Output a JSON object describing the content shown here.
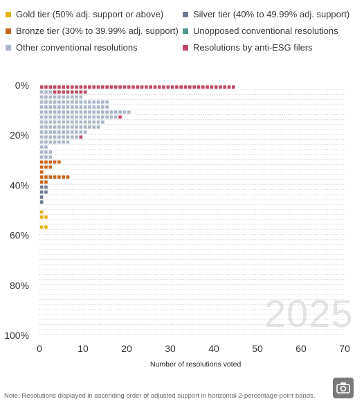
{
  "legend": [
    {
      "label": "Gold tier (50% adj. support or above)",
      "color": "#e8b215"
    },
    {
      "label": "Silver tier (40% to 49.99% adj. support)",
      "color": "#6e7a90"
    },
    {
      "label": "Bronze tier (30% to 39.99% adj. support)",
      "color": "#c8651f"
    },
    {
      "label": "Unopposed conventional resolutions",
      "color": "#4a9a8c"
    },
    {
      "label": "Other conventional resolutions",
      "color": "#aab6c8"
    },
    {
      "label": "Resolutions by anti-ESG filers",
      "color": "#c04a68"
    }
  ],
  "watermark": "2025",
  "note": "Note: Resolutions displayed in ascending order of adjusted support in horizontal 2-percentage-point bands.",
  "chart_data": {
    "type": "bar",
    "orientation": "horizontal",
    "xlabel": "Number of resolutions voted",
    "xlim": [
      0,
      70
    ],
    "x_ticks": [
      "0",
      "10",
      "20",
      "30",
      "40",
      "50",
      "60",
      "70"
    ],
    "ylim": [
      0,
      100
    ],
    "y_ticks": [
      "0%",
      "20%",
      "40%",
      "60%",
      "80%",
      "100%"
    ],
    "band_width_pct": 2,
    "bands": [
      {
        "band": "0-2%",
        "anti_esg": 45
      },
      {
        "band": "2-4%",
        "other": 3,
        "anti_esg": 8
      },
      {
        "band": "4-6%",
        "other": 10
      },
      {
        "band": "6-8%",
        "other": 16
      },
      {
        "band": "8-10%",
        "other": 16
      },
      {
        "band": "10-12%",
        "other": 21
      },
      {
        "band": "12-14%",
        "other": 18,
        "anti_esg": 1
      },
      {
        "band": "14-16%",
        "other": 15
      },
      {
        "band": "16-18%",
        "other": 14
      },
      {
        "band": "18-20%",
        "other": 11
      },
      {
        "band": "20-22%",
        "other": 9,
        "anti_esg": 1
      },
      {
        "band": "22-24%",
        "other": 7
      },
      {
        "band": "24-26%",
        "other": 2
      },
      {
        "band": "26-28%",
        "other": 3
      },
      {
        "band": "28-30%",
        "other": 3
      },
      {
        "band": "30-32%",
        "bronze": 5
      },
      {
        "band": "32-34%",
        "bronze": 3
      },
      {
        "band": "34-36%",
        "bronze": 1
      },
      {
        "band": "36-38%",
        "bronze": 7
      },
      {
        "band": "38-40%",
        "bronze": 2
      },
      {
        "band": "40-42%",
        "silver": 2
      },
      {
        "band": "42-44%",
        "silver": 2
      },
      {
        "band": "44-46%",
        "silver": 1
      },
      {
        "band": "46-48%",
        "silver": 1
      },
      {
        "band": "50-52%",
        "gold": 1
      },
      {
        "band": "52-54%",
        "gold": 2
      },
      {
        "band": "56-58%",
        "gold": 2
      }
    ]
  }
}
